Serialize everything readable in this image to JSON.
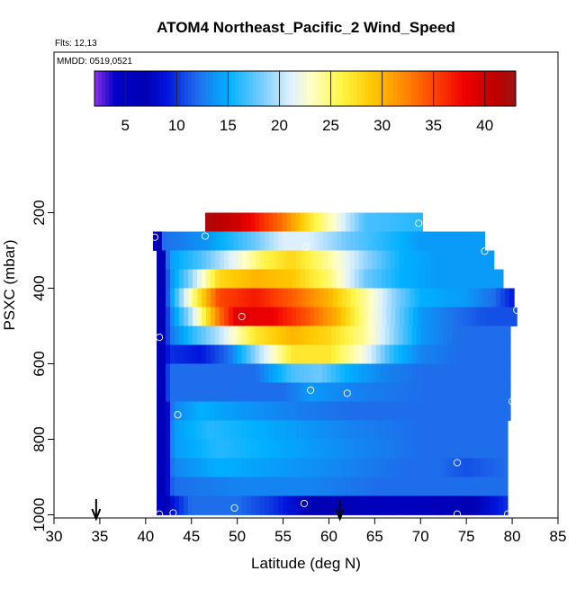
{
  "chart_data": {
    "type": "heatmap",
    "title": "ATOM4 Northeast_Pacific_2 Wind_Speed",
    "notes": [
      "Flts: 12,13",
      "MMDD: 0519,0521"
    ],
    "xlabel": "Latitude (deg N)",
    "ylabel": "PSXC (mbar)",
    "xlim": [
      30,
      85
    ],
    "ylim": [
      1010,
      0
    ],
    "y_inverted": true,
    "x_ticks": [
      "30",
      "35",
      "40",
      "45",
      "50",
      "55",
      "60",
      "65",
      "70",
      "75",
      "80",
      "85"
    ],
    "y_ticks": [
      "200",
      "400",
      "600",
      "800",
      "1000"
    ],
    "colorbar": {
      "range": [
        2,
        43
      ],
      "ticks": [
        "5",
        "10",
        "15",
        "20",
        "25",
        "30",
        "35",
        "40"
      ],
      "placement": "top-inside"
    },
    "markers": [
      {
        "type": "arrow",
        "x": 34.6
      },
      {
        "type": "arrow",
        "x": 61.2
      }
    ],
    "layers": [
      {
        "p_top": 200,
        "p_bot": 250,
        "x_start": 46.5,
        "x_end": 70.2,
        "profile": [
          [
            46.5,
            42
          ],
          [
            50,
            40
          ],
          [
            55,
            33
          ],
          [
            58,
            27
          ],
          [
            61,
            22
          ],
          [
            64,
            17
          ],
          [
            70.2,
            16
          ]
        ]
      },
      {
        "p_top": 250,
        "p_bot": 300,
        "x_start": 40.8,
        "x_end": 77.0,
        "profile": [
          [
            40.8,
            6
          ],
          [
            41.8,
            6
          ],
          [
            42,
            12
          ],
          [
            47,
            14
          ],
          [
            52,
            18
          ],
          [
            55,
            21
          ],
          [
            58,
            21
          ],
          [
            62,
            18
          ],
          [
            66,
            16
          ],
          [
            70,
            14
          ],
          [
            77,
            14
          ]
        ]
      },
      {
        "p_top": 300,
        "p_bot": 350,
        "x_start": 41.2,
        "x_end": 78.0,
        "profile": [
          [
            41.2,
            6
          ],
          [
            42.2,
            6
          ],
          [
            42.5,
            14
          ],
          [
            46,
            17
          ],
          [
            50,
            22
          ],
          [
            53,
            26
          ],
          [
            56,
            28
          ],
          [
            60,
            24
          ],
          [
            64,
            19
          ],
          [
            68,
            15
          ],
          [
            72,
            14
          ],
          [
            78,
            14
          ]
        ]
      },
      {
        "p_top": 350,
        "p_bot": 400,
        "x_start": 41.2,
        "x_end": 79.0,
        "profile": [
          [
            41.2,
            6
          ],
          [
            42.2,
            6
          ],
          [
            42.5,
            13
          ],
          [
            45,
            19
          ],
          [
            48,
            28
          ],
          [
            52,
            30
          ],
          [
            56,
            29
          ],
          [
            60,
            25
          ],
          [
            64,
            18
          ],
          [
            68,
            15
          ],
          [
            72,
            14
          ],
          [
            79,
            14
          ]
        ]
      },
      {
        "p_top": 400,
        "p_bot": 450,
        "x_start": 41.2,
        "x_end": 80.2,
        "profile": [
          [
            41.2,
            6
          ],
          [
            42.2,
            6
          ],
          [
            42.5,
            13
          ],
          [
            45,
            24
          ],
          [
            48,
            35
          ],
          [
            52,
            37
          ],
          [
            56,
            34
          ],
          [
            60,
            30
          ],
          [
            64,
            24
          ],
          [
            67,
            19
          ],
          [
            70,
            15
          ],
          [
            75,
            14
          ],
          [
            78,
            12
          ],
          [
            80.2,
            9
          ]
        ]
      },
      {
        "p_top": 450,
        "p_bot": 500,
        "x_start": 41.2,
        "x_end": 80.5,
        "profile": [
          [
            41.2,
            6
          ],
          [
            42.2,
            6
          ],
          [
            42.5,
            12
          ],
          [
            45,
            20
          ],
          [
            48,
            33
          ],
          [
            50,
            39
          ],
          [
            54,
            38
          ],
          [
            58,
            34
          ],
          [
            61,
            30
          ],
          [
            64,
            24
          ],
          [
            67,
            19
          ],
          [
            70,
            14
          ],
          [
            74,
            12
          ],
          [
            77,
            11
          ],
          [
            80.5,
            11
          ]
        ]
      },
      {
        "p_top": 500,
        "p_bot": 550,
        "x_start": 41.2,
        "x_end": 79.8,
        "profile": [
          [
            41.2,
            6
          ],
          [
            42.2,
            6
          ],
          [
            42.5,
            12
          ],
          [
            45,
            16
          ],
          [
            48,
            20
          ],
          [
            52,
            27
          ],
          [
            56,
            30
          ],
          [
            60,
            28
          ],
          [
            64,
            24
          ],
          [
            67,
            19
          ],
          [
            70,
            14
          ],
          [
            74,
            12
          ],
          [
            79.8,
            12
          ]
        ]
      },
      {
        "p_top": 550,
        "p_bot": 600,
        "x_start": 41.2,
        "x_end": 79.8,
        "profile": [
          [
            41.2,
            6
          ],
          [
            42.2,
            6
          ],
          [
            42.5,
            10
          ],
          [
            46,
            9
          ],
          [
            49,
            12
          ],
          [
            52,
            19
          ],
          [
            56,
            27
          ],
          [
            60,
            27
          ],
          [
            64,
            22
          ],
          [
            67,
            16
          ],
          [
            70,
            13
          ],
          [
            74,
            12
          ],
          [
            79.8,
            12
          ]
        ]
      },
      {
        "p_top": 600,
        "p_bot": 650,
        "x_start": 41.2,
        "x_end": 79.8,
        "profile": [
          [
            41.2,
            6
          ],
          [
            42.2,
            6
          ],
          [
            42.5,
            12
          ],
          [
            52,
            12
          ],
          [
            56,
            17
          ],
          [
            59,
            18
          ],
          [
            62,
            15
          ],
          [
            66,
            13
          ],
          [
            70,
            12
          ],
          [
            79.8,
            12
          ]
        ]
      },
      {
        "p_top": 650,
        "p_bot": 700,
        "x_start": 41.2,
        "x_end": 79.8,
        "profile": [
          [
            41.2,
            6
          ],
          [
            42.2,
            6
          ],
          [
            42.5,
            12
          ],
          [
            55,
            12
          ],
          [
            58,
            14
          ],
          [
            62,
            13
          ],
          [
            70,
            12
          ],
          [
            79.8,
            12
          ]
        ]
      },
      {
        "p_top": 700,
        "p_bot": 750,
        "x_start": 41.2,
        "x_end": 79.8,
        "profile": [
          [
            41.2,
            6
          ],
          [
            42.2,
            6
          ],
          [
            42.5,
            9
          ],
          [
            43,
            13
          ],
          [
            46,
            15
          ],
          [
            50,
            14
          ],
          [
            55,
            13
          ],
          [
            62,
            12
          ],
          [
            70,
            12
          ],
          [
            79.8,
            12
          ]
        ]
      },
      {
        "p_top": 750,
        "p_bot": 800,
        "x_start": 41.2,
        "x_end": 79.5,
        "profile": [
          [
            41.2,
            6
          ],
          [
            42.2,
            6
          ],
          [
            42.5,
            9
          ],
          [
            43,
            14
          ],
          [
            47,
            16
          ],
          [
            52,
            15
          ],
          [
            57,
            14
          ],
          [
            62,
            13
          ],
          [
            70,
            12
          ],
          [
            79.5,
            12
          ]
        ]
      },
      {
        "p_top": 800,
        "p_bot": 850,
        "x_start": 41.2,
        "x_end": 79.5,
        "profile": [
          [
            41.2,
            6
          ],
          [
            42.2,
            6
          ],
          [
            42.5,
            9
          ],
          [
            43,
            14
          ],
          [
            48,
            16
          ],
          [
            53,
            15
          ],
          [
            58,
            14
          ],
          [
            64,
            13
          ],
          [
            70,
            12
          ],
          [
            79.5,
            12
          ]
        ]
      },
      {
        "p_top": 850,
        "p_bot": 900,
        "x_start": 41.2,
        "x_end": 79.5,
        "profile": [
          [
            41.2,
            6
          ],
          [
            42.2,
            6
          ],
          [
            42.5,
            9
          ],
          [
            43,
            13
          ],
          [
            48,
            15
          ],
          [
            55,
            14
          ],
          [
            62,
            13
          ],
          [
            68,
            12
          ],
          [
            72,
            12
          ],
          [
            75,
            11
          ],
          [
            79.5,
            12
          ]
        ]
      },
      {
        "p_top": 900,
        "p_bot": 950,
        "x_start": 41.2,
        "x_end": 79.5,
        "profile": [
          [
            41.2,
            6
          ],
          [
            42.2,
            6
          ],
          [
            42.5,
            9
          ],
          [
            43,
            12
          ],
          [
            50,
            13
          ],
          [
            58,
            13
          ],
          [
            65,
            12
          ],
          [
            79.5,
            12
          ]
        ]
      },
      {
        "p_top": 950,
        "p_bot": 1000,
        "x_start": 41.2,
        "x_end": 79.5,
        "profile": [
          [
            41.2,
            5
          ],
          [
            42.2,
            5
          ],
          [
            42.5,
            8
          ],
          [
            45,
            12
          ],
          [
            50,
            12
          ],
          [
            54,
            10
          ],
          [
            58,
            7
          ],
          [
            62,
            6
          ],
          [
            68,
            5
          ],
          [
            74,
            6
          ],
          [
            77,
            8
          ],
          [
            79.5,
            10
          ]
        ]
      }
    ],
    "points": [
      {
        "lat": 41.0,
        "p": 265
      },
      {
        "lat": 46.5,
        "p": 262
      },
      {
        "lat": 69.8,
        "p": 228
      },
      {
        "lat": 57.5,
        "p": 290
      },
      {
        "lat": 77.0,
        "p": 302
      },
      {
        "lat": 80.5,
        "p": 458
      },
      {
        "lat": 50.5,
        "p": 475
      },
      {
        "lat": 41.5,
        "p": 530
      },
      {
        "lat": 58.0,
        "p": 670
      },
      {
        "lat": 62.0,
        "p": 678
      },
      {
        "lat": 80.0,
        "p": 700
      },
      {
        "lat": 43.5,
        "p": 735
      },
      {
        "lat": 74.0,
        "p": 862
      },
      {
        "lat": 57.3,
        "p": 970
      },
      {
        "lat": 49.7,
        "p": 982
      },
      {
        "lat": 43.0,
        "p": 995
      },
      {
        "lat": 41.5,
        "p": 998
      },
      {
        "lat": 74.0,
        "p": 998
      },
      {
        "lat": 79.5,
        "p": 998
      }
    ]
  }
}
